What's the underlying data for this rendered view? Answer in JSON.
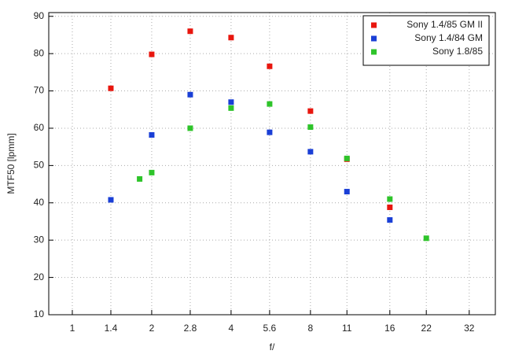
{
  "chart_data": {
    "type": "scatter",
    "x_label": "f/",
    "y_label": "MTF50 [lpmm]",
    "log_x": true,
    "grid": true,
    "legend": "top-right",
    "xlim": [
      0.814,
      40.2
    ],
    "xticks": [
      1,
      1.4,
      2,
      2.8,
      4,
      5.6,
      8,
      11,
      16,
      22,
      32
    ],
    "ylim": [
      10,
      91
    ],
    "yticks": [
      10,
      20,
      30,
      40,
      50,
      60,
      70,
      80,
      90
    ],
    "series": [
      {
        "name": "Sony 1.4/85 GM II",
        "color": "#e8160e",
        "x": [
          1.4,
          2,
          2.8,
          4,
          5.6,
          8,
          11,
          16
        ],
        "values": [
          70.7,
          79.8,
          86,
          84.3,
          76.6,
          64.6,
          51.7,
          38.8
        ]
      },
      {
        "name": "Sony 1.4/84 GM",
        "color": "#1a3fd6",
        "x": [
          1.4,
          2,
          2.8,
          4,
          5.6,
          8,
          11,
          16
        ],
        "values": [
          40.8,
          58.2,
          69,
          67,
          58.9,
          53.7,
          43,
          35.4
        ]
      },
      {
        "name": "Sony 1.8/85",
        "color": "#2ec42a",
        "x": [
          1.8,
          2,
          2.8,
          4,
          5.6,
          8,
          11,
          16,
          22
        ],
        "values": [
          46.4,
          48.1,
          60,
          65.4,
          66.5,
          60.3,
          51.9,
          41,
          30.5
        ]
      }
    ]
  }
}
